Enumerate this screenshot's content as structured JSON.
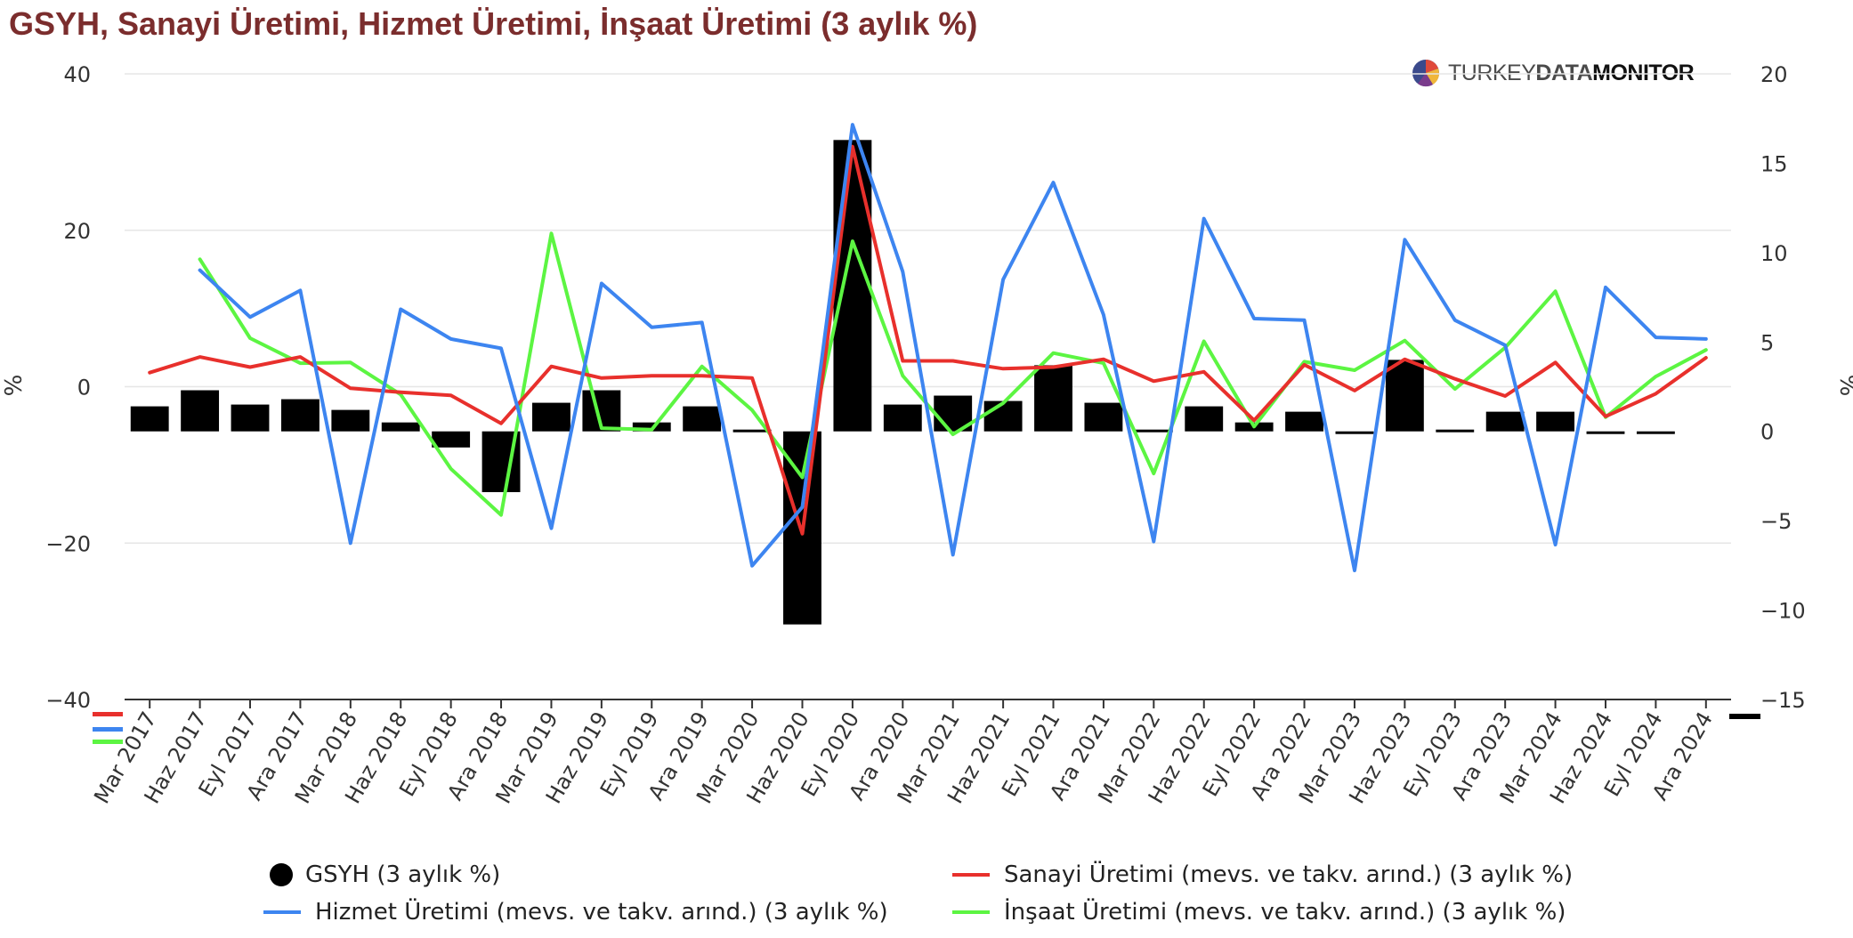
{
  "title": "GSYH, Sanayi Üretimi, Hizmet Üretimi, İnşaat Üretimi (3 aylık %)",
  "logo": {
    "part1": "TURKEY",
    "part2": "DATA",
    "part3": "MONITOR"
  },
  "colors": {
    "gsyh": "#000000",
    "sanayi": "#e8302c",
    "hizmet": "#3d85f0",
    "insaat": "#5cf542",
    "title": "#7b2d2d",
    "grid": "#e6e6e6"
  },
  "chart_data": {
    "type": "bar",
    "title": "GSYH, Sanayi Üretimi, Hizmet Üretimi, İnşaat Üretimi (3 aylık %)",
    "categories": [
      "Mar 2017",
      "Haz 2017",
      "Eyl 2017",
      "Ara 2017",
      "Mar 2018",
      "Haz 2018",
      "Eyl 2018",
      "Ara 2018",
      "Mar 2019",
      "Haz 2019",
      "Eyl 2019",
      "Ara 2019",
      "Mar 2020",
      "Haz 2020",
      "Eyl 2020",
      "Ara 2020",
      "Mar 2021",
      "Haz 2021",
      "Eyl 2021",
      "Ara 2021",
      "Mar 2022",
      "Haz 2022",
      "Eyl 2022",
      "Ara 2022",
      "Mar 2023",
      "Haz 2023",
      "Eyl 2023",
      "Ara 2023",
      "Mar 2024",
      "Haz 2024",
      "Eyl 2024",
      "Ara 2024"
    ],
    "y_left": {
      "label": "%",
      "min": -40,
      "max": 40,
      "ticks": [
        -40,
        -20,
        0,
        20,
        40
      ]
    },
    "y_right": {
      "label": "%",
      "min": -15,
      "max": 20,
      "ticks": [
        -15,
        -10,
        -5,
        0,
        5,
        10,
        15,
        20
      ]
    },
    "grid": true,
    "legend_position": "bottom",
    "series": [
      {
        "name": "GSYH (3 aylık %)",
        "type": "bar",
        "axis": "right",
        "values": [
          1.4,
          2.3,
          1.5,
          1.8,
          1.2,
          0.5,
          -0.9,
          -3.4,
          1.6,
          2.3,
          0.5,
          1.4,
          0.1,
          -10.8,
          16.3,
          1.5,
          2.0,
          1.7,
          3.7,
          1.6,
          0.1,
          1.4,
          0.5,
          1.1,
          0.0,
          4.0,
          0.1,
          1.1,
          1.1,
          -0.1,
          -0.1,
          null
        ]
      },
      {
        "name": "Sanayi Üretimi (mevs. ve takv. arınd.) (3 aylık %)",
        "type": "line",
        "axis": "left",
        "values": [
          1.8,
          3.8,
          2.5,
          3.8,
          -0.2,
          -0.7,
          -1.1,
          -4.7,
          2.6,
          1.1,
          1.4,
          1.4,
          1.1,
          -18.8,
          30.7,
          3.3,
          3.3,
          2.3,
          2.5,
          3.5,
          0.7,
          1.9,
          -4.3,
          2.8,
          -0.5,
          3.5,
          1.0,
          -1.2,
          3.1,
          -3.8,
          -0.9,
          3.7
        ]
      },
      {
        "name": "Hizmet Üretimi (mevs. ve takv. arınd.) (3 aylık %)",
        "type": "line",
        "axis": "left",
        "values": [
          null,
          14.9,
          8.9,
          12.3,
          -20.0,
          9.9,
          6.1,
          4.9,
          -18.1,
          13.2,
          7.6,
          8.2,
          -22.9,
          -15.4,
          33.5,
          14.7,
          -21.5,
          13.7,
          26.1,
          9.2,
          -19.8,
          21.5,
          8.7,
          8.5,
          -23.5,
          18.8,
          8.5,
          5.3,
          -20.2,
          12.7,
          6.3,
          6.1
        ]
      },
      {
        "name": "İnşaat Üretimi (mevs. ve takv. arınd.) (3 aylık %)",
        "type": "line",
        "axis": "left",
        "values": [
          null,
          16.3,
          6.2,
          3.0,
          3.1,
          -1.0,
          -10.5,
          -16.4,
          19.6,
          -5.3,
          -5.5,
          2.6,
          -3.0,
          -11.6,
          18.6,
          1.4,
          -6.1,
          -2.1,
          4.3,
          3.0,
          -11.1,
          5.8,
          -5.1,
          3.2,
          2.1,
          5.9,
          -0.3,
          5.0,
          12.2,
          -3.9,
          1.3,
          4.7
        ]
      }
    ]
  },
  "legend": {
    "gsyh": "GSYH (3 aylık %)",
    "sanayi": "Sanayi Üretimi (mevs. ve takv. arınd.) (3 aylık %)",
    "hizmet": "Hizmet Üretimi (mevs. ve takv. arınd.) (3 aylık %)",
    "insaat": "İnşaat Üretimi (mevs. ve takv. arınd.) (3 aylık %)"
  }
}
